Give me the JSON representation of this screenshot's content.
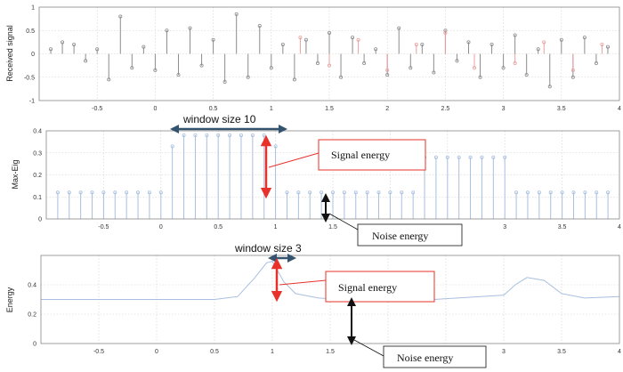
{
  "chart_data": [
    {
      "type": "stem",
      "ylabel": "Received signal",
      "xlim": [
        -1,
        4
      ],
      "ylim": [
        -1,
        1
      ],
      "xticks": [
        "-0.5",
        "0",
        "0.5",
        "1",
        "1.5",
        "2",
        "2.5",
        "3",
        "3.5",
        "4"
      ],
      "yticks": [
        "-1",
        "-0.5",
        "0",
        "0.5",
        "1"
      ],
      "grid": true,
      "series": [
        {
          "color": "#8c8c8c",
          "x": [
            -0.9,
            -0.8,
            -0.7,
            -0.6,
            -0.5,
            -0.4,
            -0.3,
            -0.2,
            -0.1,
            0.0,
            0.1,
            0.2,
            0.3,
            0.4,
            0.5,
            0.6,
            0.7,
            0.8,
            0.9,
            1.0,
            1.1,
            1.2,
            1.3,
            1.4,
            1.5,
            1.6,
            1.7,
            1.8,
            1.9,
            2.0,
            2.1,
            2.2,
            2.3,
            2.4,
            2.5,
            2.6,
            2.7,
            2.8,
            2.9,
            3.0,
            3.1,
            3.2,
            3.3,
            3.4,
            3.5,
            3.6,
            3.7,
            3.8,
            3.9
          ],
          "y": [
            0.1,
            0.25,
            0.2,
            -0.15,
            0.1,
            -0.55,
            0.8,
            -0.3,
            0.15,
            -0.35,
            0.5,
            -0.45,
            0.55,
            -0.25,
            0.3,
            -0.6,
            0.85,
            -0.5,
            0.6,
            -0.3,
            0.2,
            -0.55,
            0.3,
            -0.2,
            0.45,
            -0.5,
            0.35,
            -0.2,
            0.1,
            -0.45,
            0.55,
            -0.3,
            0.2,
            -0.4,
            0.5,
            -0.15,
            0.25,
            -0.5,
            0.2,
            -0.3,
            0.4,
            -0.45,
            0.1,
            -0.7,
            0.3,
            -0.5,
            0.35,
            -0.2,
            0.15
          ]
        },
        {
          "color": "#e8a0a0",
          "x": [
            1.25,
            1.5,
            1.75,
            2.0,
            2.25,
            2.5,
            2.75,
            3.1,
            3.35,
            3.6,
            3.85
          ],
          "y": [
            0.35,
            -0.25,
            0.3,
            -0.35,
            0.2,
            0.45,
            -0.3,
            -0.2,
            0.25,
            -0.35,
            0.2
          ]
        }
      ]
    },
    {
      "type": "stem",
      "ylabel": "Max-Eig",
      "xlim": [
        -1,
        4
      ],
      "ylim": [
        0,
        0.4
      ],
      "xticks": [
        "-0.5",
        "0",
        "0.5",
        "1",
        "1.5",
        "2",
        "2.5",
        "3",
        "3.5",
        "4"
      ],
      "yticks": [
        "0",
        "0.1",
        "0.2",
        "0.3",
        "0.4"
      ],
      "grid": true,
      "series": [
        {
          "color": "#a8bfe0",
          "x": [
            -0.9,
            -0.8,
            -0.7,
            -0.6,
            -0.5,
            -0.4,
            -0.3,
            -0.2,
            -0.1,
            0.0,
            0.1,
            0.2,
            0.3,
            0.4,
            0.5,
            0.6,
            0.7,
            0.8,
            0.9,
            1.0,
            1.1,
            1.2,
            1.3,
            1.4,
            1.5,
            1.6,
            1.7,
            1.8,
            1.9,
            2.0,
            2.1,
            2.2,
            2.3,
            2.4,
            2.5,
            2.6,
            2.7,
            2.8,
            2.9,
            3.0,
            3.1,
            3.2,
            3.3,
            3.4,
            3.5,
            3.6,
            3.7,
            3.8,
            3.9
          ],
          "y": [
            0.12,
            0.12,
            0.12,
            0.12,
            0.12,
            0.12,
            0.12,
            0.12,
            0.12,
            0.12,
            0.33,
            0.38,
            0.38,
            0.38,
            0.38,
            0.38,
            0.38,
            0.38,
            0.38,
            0.33,
            0.12,
            0.12,
            0.12,
            0.12,
            0.12,
            0.12,
            0.12,
            0.12,
            0.12,
            0.12,
            0.12,
            0.12,
            0.28,
            0.28,
            0.28,
            0.28,
            0.28,
            0.28,
            0.28,
            0.28,
            0.12,
            0.12,
            0.12,
            0.12,
            0.12,
            0.12,
            0.12,
            0.12,
            0.12
          ]
        }
      ],
      "annotations": {
        "window_label": "window size 10",
        "window_x": [
          0.1,
          1.1
        ],
        "signal_label": "Signal energy",
        "noise_label": "Noise energy"
      }
    },
    {
      "type": "line",
      "ylabel": "Energy",
      "xlim": [
        -1,
        4
      ],
      "ylim": [
        0,
        0.6
      ],
      "xticks": [
        "-0.5",
        "0",
        "0.5",
        "1",
        "1.5",
        "2",
        "2.5",
        "3",
        "3.5",
        "4"
      ],
      "yticks": [
        "0",
        "0.2",
        "0.4"
      ],
      "grid": true,
      "series": [
        {
          "color": "#a8bfe0",
          "x": [
            -1.0,
            -0.5,
            0.0,
            0.5,
            0.7,
            0.85,
            0.95,
            1.0,
            1.1,
            1.2,
            1.4,
            1.6,
            2.0,
            2.4,
            2.8,
            3.0,
            3.1,
            3.2,
            3.35,
            3.5,
            3.7,
            4.0
          ],
          "y": [
            0.3,
            0.3,
            0.3,
            0.3,
            0.32,
            0.45,
            0.55,
            0.56,
            0.42,
            0.34,
            0.31,
            0.3,
            0.32,
            0.3,
            0.32,
            0.33,
            0.4,
            0.45,
            0.43,
            0.34,
            0.31,
            0.32
          ]
        }
      ],
      "annotations": {
        "window_label": "window size 3",
        "window_x": [
          1.0,
          1.15
        ],
        "signal_label": "Signal energy",
        "noise_label": "Noise energy"
      }
    }
  ]
}
